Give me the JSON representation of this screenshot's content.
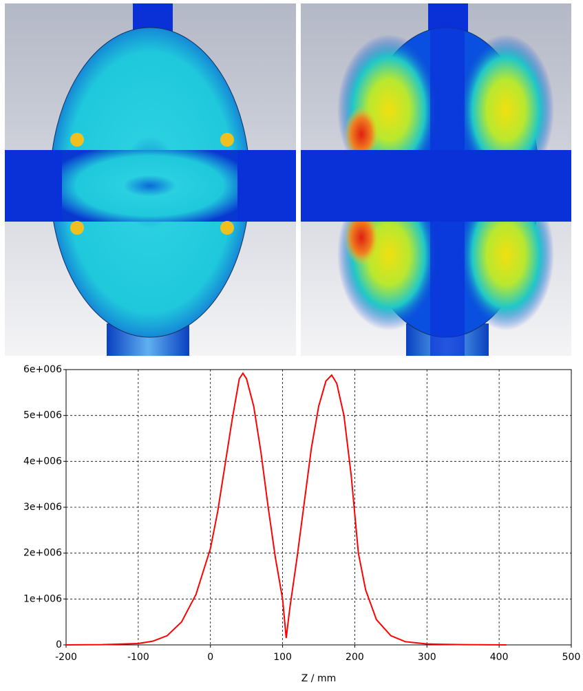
{
  "chart_data": {
    "type": "line",
    "xlabel": "Z / mm",
    "x": [
      -200,
      -150,
      -100,
      -80,
      -60,
      -40,
      -20,
      0,
      10,
      20,
      30,
      40,
      45,
      50,
      60,
      70,
      80,
      90,
      100,
      105,
      110,
      120,
      130,
      140,
      150,
      160,
      168,
      175,
      185,
      195,
      205,
      215,
      230,
      250,
      270,
      300,
      350,
      410
    ],
    "values": [
      0,
      5000,
      30000,
      80000,
      200000,
      500000,
      1100000,
      2100000,
      2900000,
      3900000,
      4900000,
      5800000,
      5920000,
      5800000,
      5200000,
      4200000,
      3000000,
      1900000,
      1000000,
      150000,
      800000,
      1900000,
      3100000,
      4300000,
      5200000,
      5750000,
      5880000,
      5700000,
      5000000,
      3700000,
      2000000,
      1200000,
      550000,
      200000,
      70000,
      20000,
      5000,
      0
    ],
    "color": "#ff0000",
    "xlim": [
      -200,
      500
    ],
    "xticks": [
      -200,
      -100,
      0,
      100,
      200,
      300,
      400,
      500
    ],
    "ylim": [
      0,
      6000000
    ],
    "yticks": [
      0,
      {
        "value": 1000000,
        "label": "1e+006"
      },
      {
        "value": 2000000,
        "label": "2e+006"
      },
      {
        "value": 3000000,
        "label": "3e+006"
      },
      {
        "value": 4000000,
        "label": "4e+006"
      },
      {
        "value": 5000000,
        "label": "5e+006"
      },
      {
        "value": 6000000,
        "label": "6e+006"
      }
    ],
    "grid": true
  }
}
